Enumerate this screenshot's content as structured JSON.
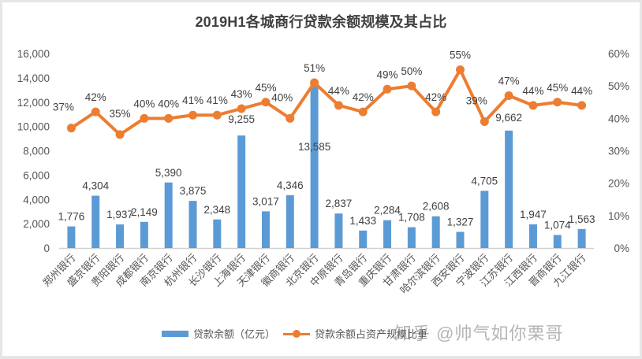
{
  "chart_data": {
    "type": "bar+line",
    "title": "2019H1各城商行贷款余额规模及其占比",
    "categories": [
      "郑州银行",
      "盛京银行",
      "贵阳银行",
      "成都银行",
      "南京银行",
      "杭州银行",
      "长沙银行",
      "上海银行",
      "天津银行",
      "徽商银行",
      "北京银行",
      "中原银行",
      "青岛银行",
      "重庆银行",
      "甘肃银行",
      "哈尔滨银行",
      "西安银行",
      "宁波银行",
      "江苏银行",
      "江西银行",
      "晋商银行",
      "九江银行"
    ],
    "series": [
      {
        "name": "贷款余额（亿元）",
        "type": "bar",
        "axis": "left",
        "color": "#5b9bd5",
        "values": [
          1776,
          4304,
          1937,
          2149,
          5390,
          3875,
          2348,
          9255,
          3017,
          4346,
          13585,
          2837,
          1433,
          2284,
          1708,
          2608,
          1327,
          4705,
          9662,
          1947,
          1074,
          1563
        ],
        "labels": [
          "1,776",
          "4,304",
          "1,937",
          "2,149",
          "5,390",
          "3,875",
          "2,348",
          "9,255",
          "3,017",
          "4,346",
          "13,585",
          "2,837",
          "1,433",
          "2,284",
          "1,708",
          "2,608",
          "1,327",
          "4,705",
          "9,662",
          "1,947",
          "1,074",
          "1,563"
        ]
      },
      {
        "name": "贷款余额占资产规模比重",
        "type": "line",
        "axis": "right",
        "color": "#ed7d31",
        "values": [
          37,
          42,
          35,
          40,
          40,
          41,
          41,
          43,
          45,
          40,
          51,
          44,
          42,
          49,
          50,
          42,
          55,
          39,
          47,
          44,
          45,
          44
        ],
        "labels": [
          "37%",
          "42%",
          "35%",
          "40%",
          "40%",
          "41%",
          "41%",
          "43%",
          "45%",
          "40%",
          "51%",
          "44%",
          "42%",
          "49%",
          "50%",
          "42%",
          "55%",
          "39%",
          "47%",
          "44%",
          "45%",
          "44%"
        ]
      }
    ],
    "left_axis": {
      "min": 0,
      "max": 16000,
      "step": 2000,
      "ticks": [
        "0",
        "2,000",
        "4,000",
        "6,000",
        "8,000",
        "10,000",
        "12,000",
        "14,000",
        "16,000"
      ]
    },
    "right_axis": {
      "min": 0,
      "max": 60,
      "step": 10,
      "ticks": [
        "0%",
        "10%",
        "20%",
        "30%",
        "40%",
        "50%",
        "60%"
      ]
    },
    "grid": false,
    "legend_position": "bottom"
  },
  "legend": {
    "bar_label": "贷款余额（亿元）",
    "line_label": "贷款余额占资产规模比重"
  },
  "watermark": "知乎 @帅气如你栗哥"
}
